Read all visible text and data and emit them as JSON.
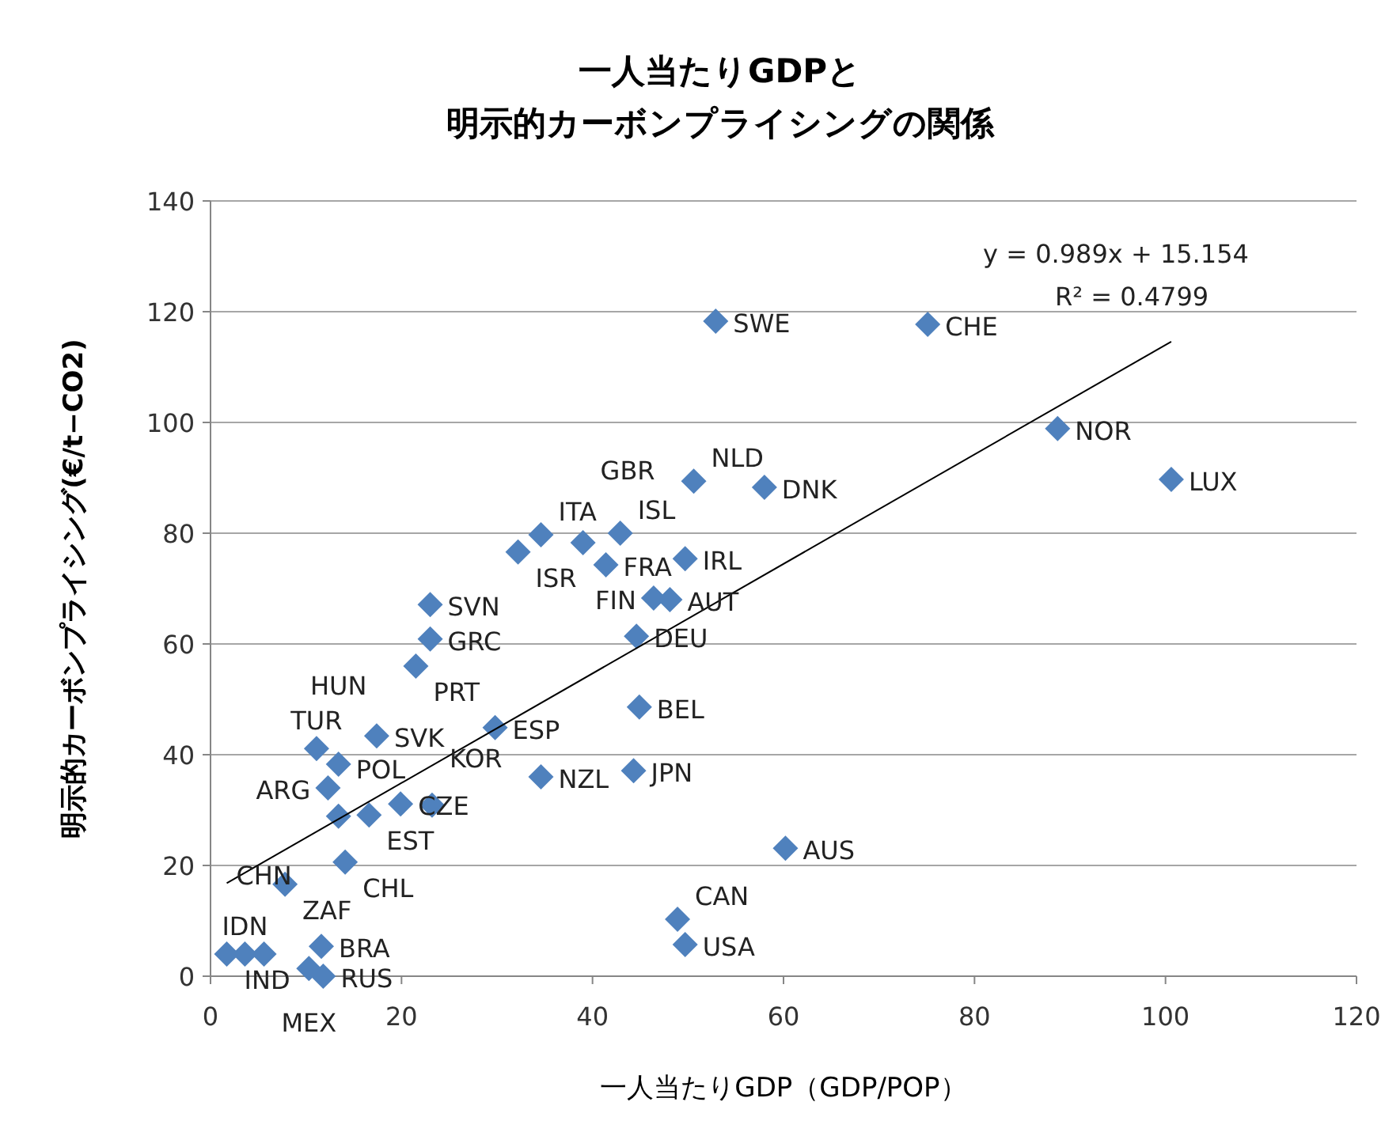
{
  "chart_data": {
    "type": "scatter",
    "title": "一人当たりGDPと",
    "subtitle": "明示的カーボンプライシングの関係",
    "xlabel": "一人当たりGDP（GDP/POP）",
    "ylabel": "明示的カーボンプライシング(€/t−CO2)",
    "xlim": [
      0,
      120
    ],
    "ylim": [
      0,
      140
    ],
    "xticks": [
      0,
      20,
      40,
      60,
      80,
      100,
      120
    ],
    "yticks": [
      0,
      20,
      40,
      60,
      80,
      100,
      120,
      140
    ],
    "grid": "y",
    "marker": "diamond",
    "series": [
      {
        "type": "scatter",
        "color": "#4f81bd",
        "x": [
          52.9,
          75.1,
          88.7,
          100.6,
          50.6,
          58.0,
          42.9,
          34.6,
          32.2,
          39.0,
          41.4,
          49.7,
          46.4,
          48.1,
          44.6,
          44.9,
          29.8,
          23.0,
          23.0,
          21.5,
          44.3,
          34.6,
          60.2,
          48.9,
          49.7,
          11.1,
          17.4,
          13.4,
          12.3,
          13.4,
          16.6,
          19.9,
          23.2,
          14.1,
          7.8,
          1.7,
          3.6,
          5.6,
          11.6,
          10.3,
          11.8
        ],
        "values": [
          118.3,
          117.7,
          98.9,
          89.7,
          89.4,
          88.3,
          80,
          79.7,
          76.6,
          78.3,
          74.3,
          75.4,
          68.3,
          68,
          61.4,
          48.6,
          44.9,
          67.1,
          60.9,
          56,
          37.1,
          36,
          23.1,
          10.3,
          5.7,
          41.1,
          43.4,
          38.3,
          34,
          28.9,
          29.1,
          31.1,
          30.9,
          20.6,
          16.6,
          4,
          4,
          4,
          5.4,
          1.4,
          0
        ]
      },
      {
        "type": "line",
        "color": "#000000",
        "marker": "none",
        "x": [
          1.7,
          100.6
        ],
        "values": [
          16.8,
          114.6
        ]
      }
    ],
    "annotations": [
      "y = 0.989x + 15.154",
      "R² = 0.4799",
      {
        "text": "SWE",
        "x": 52.9,
        "y": 118.3
      },
      {
        "text": "CHE",
        "x": 75.1,
        "y": 117.7
      },
      {
        "text": "NOR",
        "x": 88.7,
        "y": 98.9
      },
      {
        "text": "LUX",
        "x": 100.6,
        "y": 89.7
      },
      {
        "text": "NLD",
        "x": 50.6,
        "y": 89.4
      },
      {
        "text": "DNK",
        "x": 58.0,
        "y": 88.3
      },
      {
        "text": "ISL",
        "x": 42.9,
        "y": 80
      },
      {
        "text": "ITA",
        "x": 34.6,
        "y": 79.7
      },
      {
        "text": "ISR",
        "x": 32.2,
        "y": 76.6
      },
      {
        "text": "GBR",
        "x": 39.0,
        "y": 78.3
      },
      {
        "text": "FRA",
        "x": 41.4,
        "y": 74.3
      },
      {
        "text": "IRL",
        "x": 49.7,
        "y": 75.4
      },
      {
        "text": "FIN",
        "x": 46.4,
        "y": 68.3
      },
      {
        "text": "AUT",
        "x": 48.1,
        "y": 68
      },
      {
        "text": "DEU",
        "x": 44.6,
        "y": 61.4
      },
      {
        "text": "BEL",
        "x": 44.9,
        "y": 48.6
      },
      {
        "text": "ESP",
        "x": 29.8,
        "y": 44.9
      },
      {
        "text": "SVN",
        "x": 23.0,
        "y": 67.1
      },
      {
        "text": "GRC",
        "x": 23.0,
        "y": 60.9
      },
      {
        "text": "PRT",
        "x": 21.5,
        "y": 56
      },
      {
        "text": "JPN",
        "x": 44.3,
        "y": 37.1
      },
      {
        "text": "NZL",
        "x": 34.6,
        "y": 36
      },
      {
        "text": "AUS",
        "x": 60.2,
        "y": 23.1
      },
      {
        "text": "CAN",
        "x": 48.9,
        "y": 10.3
      },
      {
        "text": "USA",
        "x": 49.7,
        "y": 5.7
      },
      {
        "text": "TUR",
        "x": 11.1,
        "y": 41.1
      },
      {
        "text": "SVK",
        "x": 17.4,
        "y": 43.4
      },
      {
        "text": "HUN",
        "x": 13.4,
        "y": 38.3
      },
      {
        "text": "ARG",
        "x": 12.3,
        "y": 34
      },
      {
        "text": "POL",
        "x": 13.4,
        "y": 28.9
      },
      {
        "text": "EST",
        "x": 16.6,
        "y": 29.1
      },
      {
        "text": "CZE",
        "x": 19.9,
        "y": 31.1
      },
      {
        "text": "KOR",
        "x": 23.2,
        "y": 30.9
      },
      {
        "text": "CHL",
        "x": 14.1,
        "y": 20.6
      },
      {
        "text": "ZAF",
        "x": 7.8,
        "y": 16.6
      },
      {
        "text": "IND",
        "x": 1.7,
        "y": 4
      },
      {
        "text": "IDN",
        "x": 3.6,
        "y": 4
      },
      {
        "text": "CHN",
        "x": 5.6,
        "y": 4
      },
      {
        "text": "BRA",
        "x": 11.6,
        "y": 5.4
      },
      {
        "text": "MEX",
        "x": 10.3,
        "y": 1.4
      },
      {
        "text": "RUS",
        "x": 11.8,
        "y": 0
      }
    ]
  }
}
